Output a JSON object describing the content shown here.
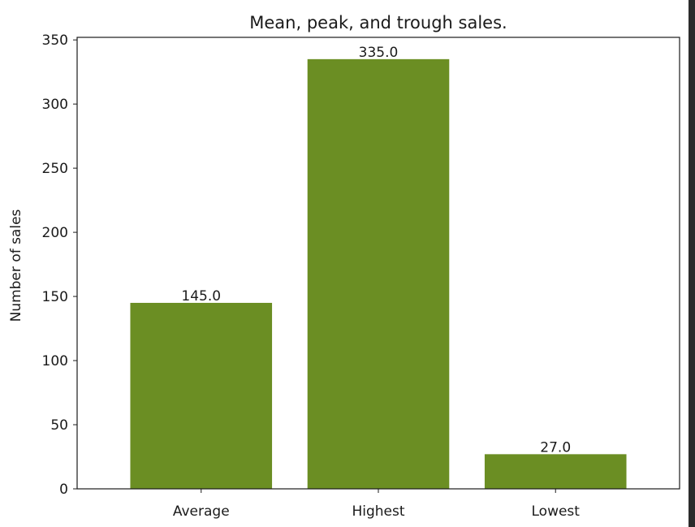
{
  "chart_data": {
    "type": "bar",
    "title": "Mean, peak, and trough sales.",
    "xlabel": "",
    "ylabel": "Number of sales",
    "categories": [
      "Average",
      "Highest",
      "Lowest"
    ],
    "values": [
      145.0,
      335.0,
      27.0
    ],
    "value_labels": [
      "145.0",
      "335.0",
      "27.0"
    ],
    "ylim": [
      0,
      352
    ],
    "yticks": [
      0,
      50,
      100,
      150,
      200,
      250,
      300,
      350
    ],
    "bar_color": "#6b8e23",
    "grid": false,
    "legend": "none"
  }
}
